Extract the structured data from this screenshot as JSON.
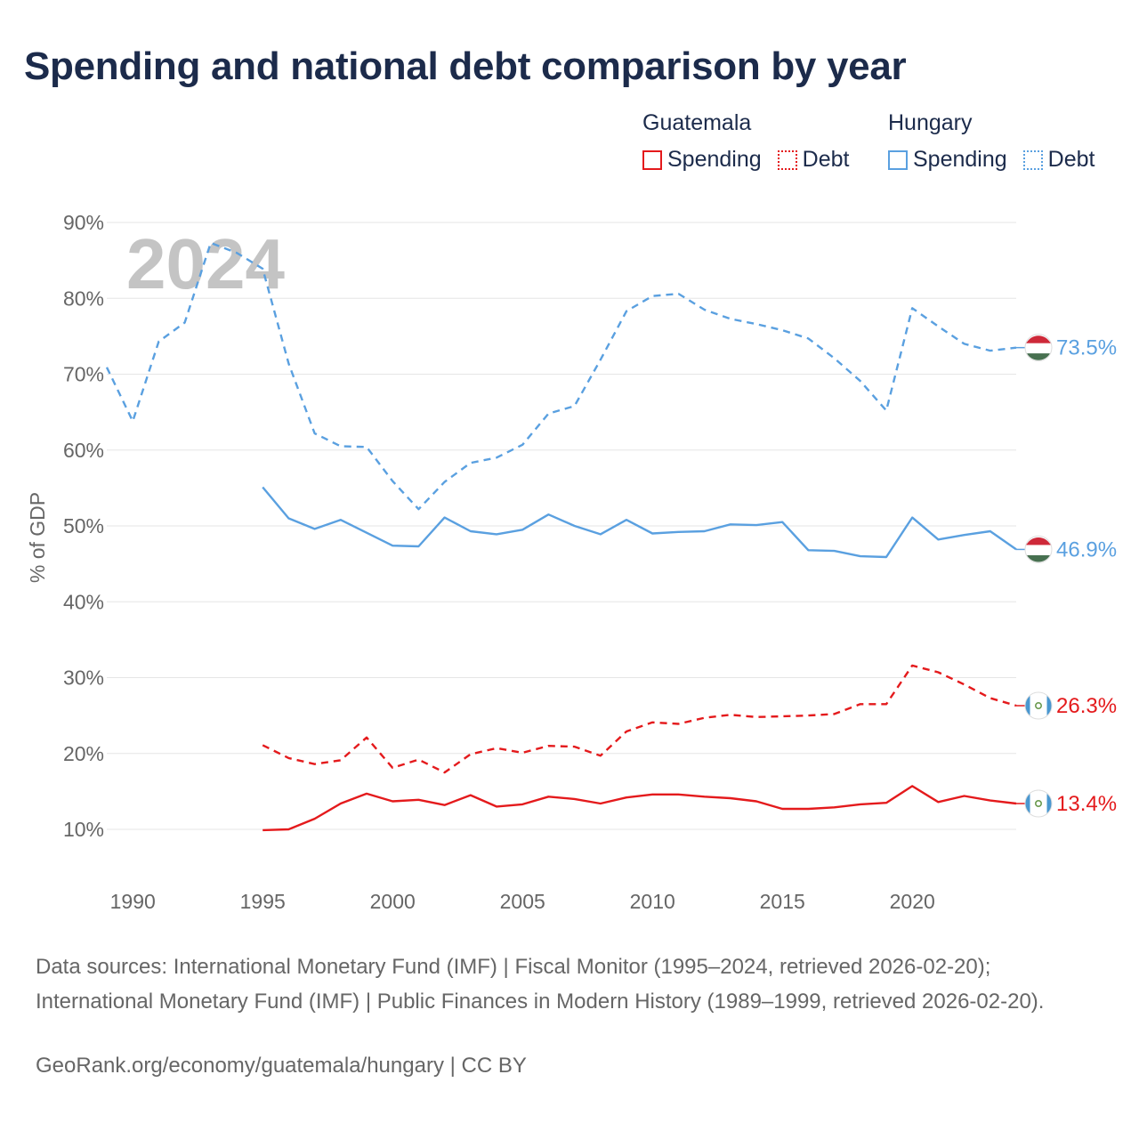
{
  "title": "Spending and national debt comparison by year",
  "legend": {
    "groups": [
      {
        "name": "Guatemala",
        "color": "#e41a1c",
        "items": [
          {
            "label": "Spending",
            "style": "solid"
          },
          {
            "label": "Debt",
            "style": "dotted"
          }
        ]
      },
      {
        "name": "Hungary",
        "color": "#5aa0e0",
        "items": [
          {
            "label": "Spending",
            "style": "solid"
          },
          {
            "label": "Debt",
            "style": "dotted"
          }
        ]
      }
    ]
  },
  "year_watermark": "2024",
  "sources": "Data sources: International Monetary Fund (IMF) | Fiscal Monitor (1995–2024, retrieved 2026-02-20); International Monetary Fund (IMF) | Public Finances in Modern History (1989–1999, retrieved 2026-02-20).",
  "credit": "GeoRank.org/economy/guatemala/hungary | CC BY",
  "chart_data": {
    "type": "line",
    "title": "Spending and national debt comparison by year",
    "xlabel": "",
    "ylabel": "% of GDP",
    "xlim": [
      1989,
      2024
    ],
    "ylim": [
      5,
      90
    ],
    "x_ticks": [
      1990,
      1995,
      2000,
      2005,
      2010,
      2015,
      2020
    ],
    "y_ticks": [
      10,
      20,
      30,
      40,
      50,
      60,
      70,
      80,
      90
    ],
    "y_tick_labels": [
      "10%",
      "20%",
      "30%",
      "40%",
      "50%",
      "60%",
      "70%",
      "80%",
      "90%"
    ],
    "grid": true,
    "series": [
      {
        "name": "Hungary Debt",
        "country": "Hungary",
        "measure": "Debt",
        "color": "#5aa0e0",
        "dash": "dashed",
        "end_label": "73.5%",
        "x": [
          1989,
          1990,
          1991,
          1992,
          1993,
          1994,
          1995,
          1996,
          1997,
          1998,
          1999,
          2000,
          2001,
          2002,
          2003,
          2004,
          2005,
          2006,
          2007,
          2008,
          2009,
          2010,
          2011,
          2012,
          2013,
          2014,
          2015,
          2016,
          2017,
          2018,
          2019,
          2020,
          2021,
          2022,
          2023,
          2024
        ],
        "values": [
          70.9,
          63.8,
          74.3,
          76.8,
          87.3,
          86.0,
          83.9,
          71.4,
          62.2,
          60.5,
          60.4,
          55.9,
          52.2,
          55.8,
          58.3,
          59.0,
          60.7,
          64.8,
          65.8,
          71.9,
          78.3,
          80.3,
          80.6,
          78.5,
          77.3,
          76.6,
          75.8,
          74.7,
          72.1,
          69.1,
          65.2,
          78.7,
          76.3,
          74.0,
          73.1,
          73.5
        ]
      },
      {
        "name": "Hungary Spending",
        "country": "Hungary",
        "measure": "Spending",
        "color": "#5aa0e0",
        "dash": "solid",
        "end_label": "46.9%",
        "x": [
          1995,
          1996,
          1997,
          1998,
          1999,
          2000,
          2001,
          2002,
          2003,
          2004,
          2005,
          2006,
          2007,
          2008,
          2009,
          2010,
          2011,
          2012,
          2013,
          2014,
          2015,
          2016,
          2017,
          2018,
          2019,
          2020,
          2021,
          2022,
          2023,
          2024
        ],
        "values": [
          55.1,
          51.0,
          49.6,
          50.8,
          49.1,
          47.4,
          47.3,
          51.1,
          49.3,
          48.9,
          49.5,
          51.5,
          50.0,
          48.9,
          50.8,
          49.0,
          49.2,
          49.3,
          50.2,
          50.1,
          50.5,
          46.8,
          46.7,
          46.0,
          45.9,
          51.1,
          48.2,
          48.8,
          49.3,
          46.9
        ]
      },
      {
        "name": "Guatemala Debt",
        "country": "Guatemala",
        "measure": "Debt",
        "color": "#e41a1c",
        "dash": "dashed",
        "end_label": "26.3%",
        "x": [
          1995,
          1996,
          1997,
          1998,
          1999,
          2000,
          2001,
          2002,
          2003,
          2004,
          2005,
          2006,
          2007,
          2008,
          2009,
          2010,
          2011,
          2012,
          2013,
          2014,
          2015,
          2016,
          2017,
          2018,
          2019,
          2020,
          2021,
          2022,
          2023,
          2024
        ],
        "values": [
          21.1,
          19.4,
          18.6,
          19.1,
          22.1,
          18.1,
          19.2,
          17.5,
          19.9,
          20.7,
          20.1,
          21.0,
          20.9,
          19.7,
          22.9,
          24.1,
          23.9,
          24.7,
          25.1,
          24.8,
          24.9,
          25.0,
          25.2,
          26.5,
          26.5,
          31.6,
          30.7,
          29.1,
          27.3,
          26.3
        ]
      },
      {
        "name": "Guatemala Spending",
        "country": "Guatemala",
        "measure": "Spending",
        "color": "#e41a1c",
        "dash": "solid",
        "end_label": "13.4%",
        "x": [
          1995,
          1996,
          1997,
          1998,
          1999,
          2000,
          2001,
          2002,
          2003,
          2004,
          2005,
          2006,
          2007,
          2008,
          2009,
          2010,
          2011,
          2012,
          2013,
          2014,
          2015,
          2016,
          2017,
          2018,
          2019,
          2020,
          2021,
          2022,
          2023,
          2024
        ],
        "values": [
          9.9,
          10.0,
          11.4,
          13.4,
          14.7,
          13.7,
          13.9,
          13.2,
          14.5,
          13.0,
          13.3,
          14.3,
          14.0,
          13.4,
          14.2,
          14.6,
          14.6,
          14.3,
          14.1,
          13.7,
          12.7,
          12.7,
          12.9,
          13.3,
          13.5,
          15.7,
          13.6,
          14.4,
          13.8,
          13.4
        ]
      }
    ]
  }
}
